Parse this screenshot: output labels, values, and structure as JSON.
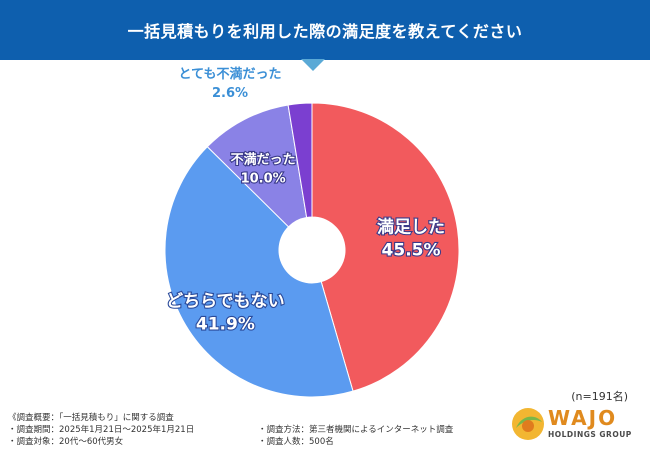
{
  "header": {
    "title": "一括見積もりを利用した際の満足度を教えてください"
  },
  "chart_data": {
    "type": "pie",
    "title": "一括見積もりを利用した際の満足度を教えてください",
    "donut": true,
    "slices": [
      {
        "label": "満足した",
        "value": 45.5,
        "display": "45.5%",
        "color": "#f25a5d"
      },
      {
        "label": "どちらでもない",
        "value": 41.9,
        "display": "41.9%",
        "color": "#5b9bf0"
      },
      {
        "label": "不満だった",
        "value": 10.0,
        "display": "10.0%",
        "color": "#8a82e6"
      },
      {
        "label": "とても不満だった",
        "value": 2.6,
        "display": "2.6%",
        "color": "#7b3fd0"
      }
    ]
  },
  "n_count": "(n=191名)",
  "survey": {
    "overview": "《調査概要：「一括見積もり」に関する調査",
    "period": "・調査期間：2025年1月21日〜2025年1月21日",
    "method": "・調査方法：第三者機関によるインターネット調査",
    "target": "・調査対象：20代〜60代男女",
    "count": "・調査人数：500名"
  },
  "logo": {
    "word": "WAJO",
    "sub": "HOLDINGS GROUP",
    "color": "#e08a1e"
  }
}
